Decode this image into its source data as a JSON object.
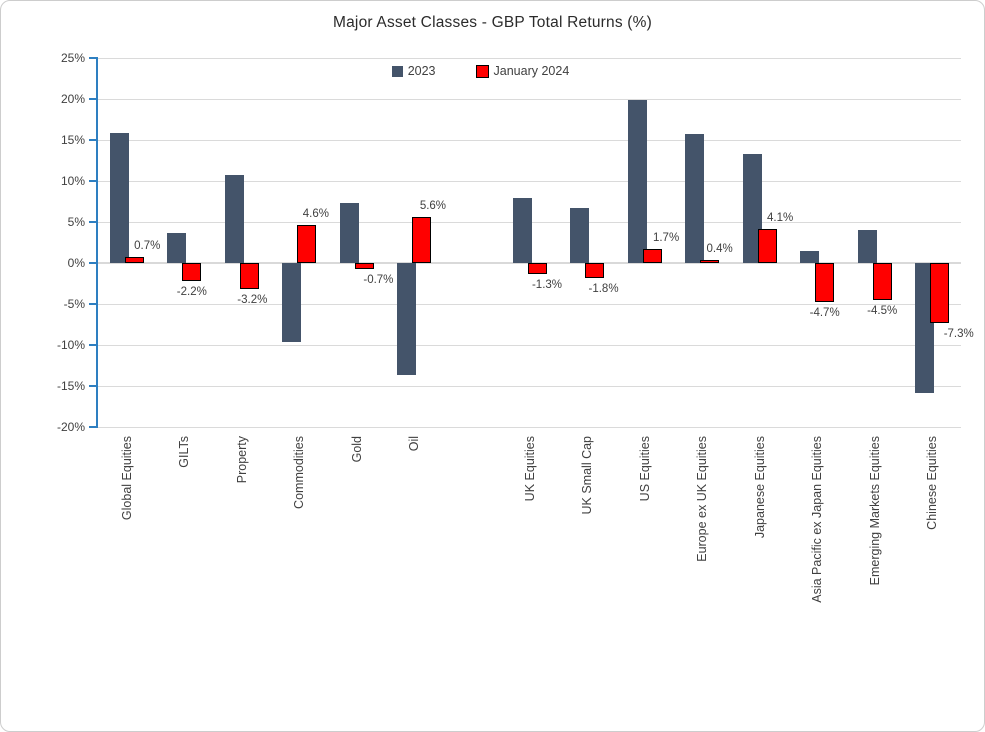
{
  "title": "Major Asset Classes - GBP Total Returns (%)",
  "legend": {
    "items": [
      {
        "label": "2023",
        "color": "#44546A",
        "border": "none"
      },
      {
        "label": "January 2024",
        "color": "#FF0000",
        "border": "#000000"
      }
    ]
  },
  "colors": {
    "series_2023": "#44546A",
    "series_jan_2024": "#FF0000",
    "axis_line": "#2e7fc1",
    "gridline": "#dadada",
    "text": "#404040"
  },
  "chart_data": {
    "type": "bar",
    "title": "Major Asset Classes - GBP Total Returns (%)",
    "categories": [
      "Global Equities",
      "GILTs",
      "Property",
      "Commodities",
      "Gold",
      "Oil",
      "UK Equities",
      "UK Small Cap",
      "US Equities",
      "Europe ex UK Equities",
      "Japanese Equities",
      "Asia Pacific ex Japan Equities",
      "Emerging Markets Equities",
      "Chinese Equities"
    ],
    "series": [
      {
        "name": "2023",
        "color": "#44546A",
        "values": [
          15.8,
          3.7,
          10.7,
          -9.6,
          7.3,
          -13.7,
          7.9,
          6.7,
          19.9,
          15.7,
          13.3,
          1.5,
          4.0,
          -15.9
        ]
      },
      {
        "name": "January 2024",
        "color": "#FF0000",
        "values": [
          0.7,
          -2.2,
          -3.2,
          4.6,
          -0.7,
          5.6,
          -1.3,
          -1.8,
          1.7,
          0.4,
          4.1,
          -4.7,
          -4.5,
          -7.3
        ],
        "data_labels": [
          "0.7%",
          "-2.2%",
          "-3.2%",
          "4.6%",
          "-0.7%",
          "5.6%",
          "-1.3%",
          "-1.8%",
          "1.7%",
          "0.4%",
          "4.1%",
          "-4.7%",
          "-4.5%",
          "-7.3%"
        ]
      }
    ],
    "y_axis": {
      "min": -20,
      "max": 25,
      "step": 5,
      "tick_labels": [
        "25%",
        "20%",
        "15%",
        "10%",
        "5%",
        "0%",
        "-5%",
        "-10%",
        "-15%",
        "-20%"
      ]
    },
    "group_break_after_index": 5,
    "grid": true,
    "legend_position": "top-inside",
    "data_labels_on_series": "January 2024"
  }
}
